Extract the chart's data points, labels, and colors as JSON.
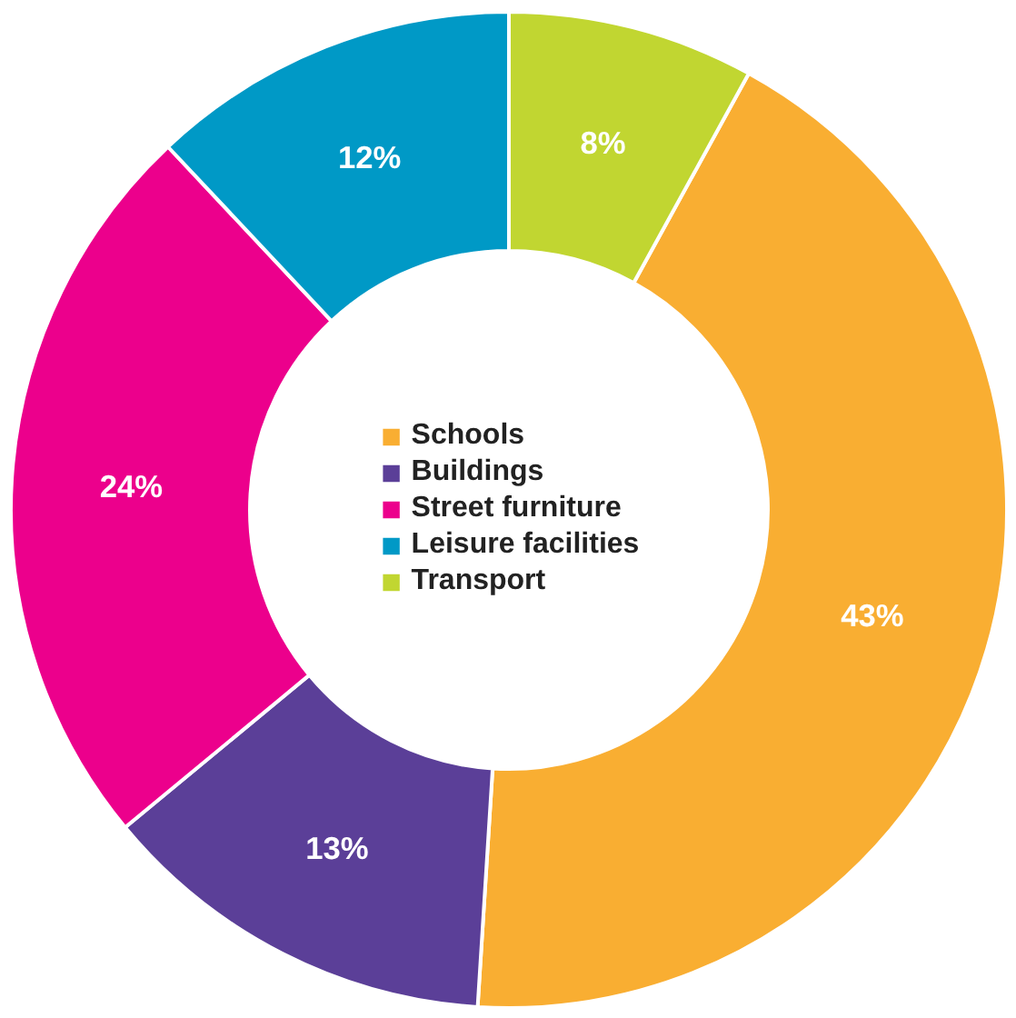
{
  "chart_data": {
    "type": "donut",
    "categories": [
      "Schools",
      "Buildings",
      "Street furniture",
      "Leisure facilities",
      "Transport"
    ],
    "values": [
      43,
      13,
      24,
      12,
      8
    ],
    "colors": [
      "#f9ae32",
      "#5b3f98",
      "#ec008c",
      "#0099c6",
      "#c1d631"
    ],
    "value_labels": [
      "43%",
      "13%",
      "24%",
      "12%",
      "8%"
    ],
    "legend": "center"
  }
}
